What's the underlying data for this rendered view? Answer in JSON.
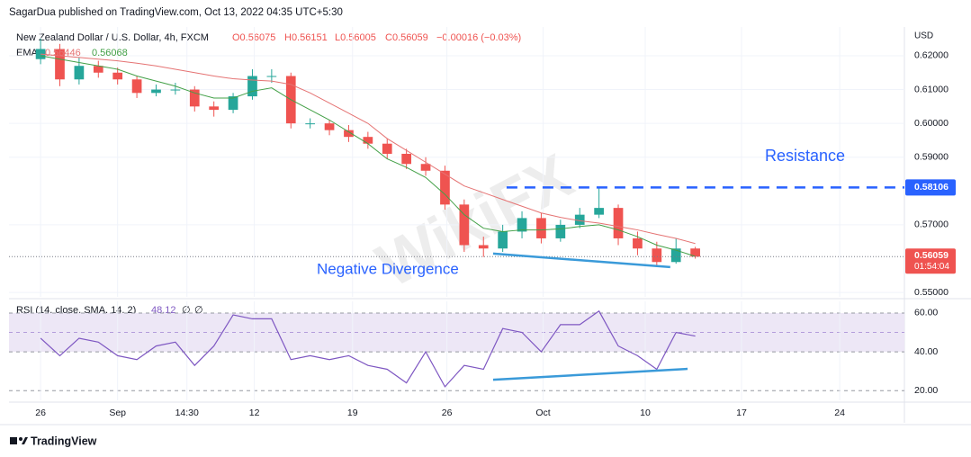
{
  "header": {
    "byline": "SagarDua published on TradingView.com, Oct 13, 2022 04:35 UTC+5:30",
    "footer": "TradingView",
    "watermark": "WikiFX"
  },
  "chart_data": [
    {
      "type": "candlestick",
      "name": "New Zealand Dollar / U.S. Dollar, 4h, FXCM",
      "ohlc_legend": [
        "O0.56075",
        "H0.56151",
        "L0.56005",
        "C0.56059",
        "−0.00016 (−0.03%)"
      ],
      "axis_label": "USD",
      "up_color": "#26a69a",
      "down_color": "#ef5350",
      "x": [
        0,
        1,
        2,
        3,
        4,
        5,
        6,
        7,
        8,
        9,
        10,
        11,
        12,
        13,
        14,
        15,
        16,
        17,
        18,
        19,
        20,
        21,
        22,
        23,
        24,
        25,
        26,
        27,
        28,
        29,
        30,
        31,
        32,
        33,
        34
      ],
      "open": [
        0.619,
        0.622,
        0.613,
        0.617,
        0.615,
        0.613,
        0.609,
        0.61,
        0.61,
        0.605,
        0.604,
        0.608,
        0.614,
        0.614,
        0.6,
        0.6,
        0.598,
        0.596,
        0.594,
        0.591,
        0.588,
        0.586,
        0.576,
        0.564,
        0.563,
        0.568,
        0.572,
        0.566,
        0.57,
        0.573,
        0.575,
        0.566,
        0.563,
        0.559,
        0.563
      ],
      "high": [
        0.625,
        0.6235,
        0.6195,
        0.6185,
        0.6165,
        0.614,
        0.6115,
        0.612,
        0.611,
        0.6065,
        0.609,
        0.616,
        0.616,
        0.615,
        0.6015,
        0.601,
        0.5995,
        0.5975,
        0.5955,
        0.5925,
        0.59,
        0.5875,
        0.5775,
        0.5665,
        0.57,
        0.574,
        0.5735,
        0.5715,
        0.575,
        0.581,
        0.576,
        0.568,
        0.565,
        0.566,
        0.5635
      ],
      "low": [
        0.6175,
        0.611,
        0.6115,
        0.6135,
        0.6115,
        0.6075,
        0.608,
        0.6085,
        0.6035,
        0.602,
        0.603,
        0.607,
        0.612,
        0.5985,
        0.5985,
        0.5965,
        0.5945,
        0.5925,
        0.5895,
        0.5865,
        0.5845,
        0.5745,
        0.562,
        0.5605,
        0.562,
        0.566,
        0.5645,
        0.565,
        0.569,
        0.572,
        0.564,
        0.561,
        0.5575,
        0.5585,
        0.56
      ],
      "close": [
        0.622,
        0.613,
        0.617,
        0.615,
        0.613,
        0.609,
        0.61,
        0.61,
        0.605,
        0.604,
        0.608,
        0.614,
        0.614,
        0.6,
        0.6,
        0.598,
        0.596,
        0.594,
        0.591,
        0.588,
        0.586,
        0.576,
        0.564,
        0.563,
        0.568,
        0.572,
        0.566,
        0.57,
        0.573,
        0.575,
        0.566,
        0.563,
        0.559,
        0.563,
        0.56059
      ],
      "indicator_label": "EMA",
      "overlays": [
        {
          "color": "#e57373",
          "last_label": "0.56446",
          "values": [
            0.6205,
            0.62,
            0.6195,
            0.619,
            0.6185,
            0.6178,
            0.617,
            0.616,
            0.615,
            0.614,
            0.6132,
            0.6128,
            0.6125,
            0.6115,
            0.609,
            0.606,
            0.603,
            0.6,
            0.5955,
            0.592,
            0.5885,
            0.585,
            0.5815,
            0.5795,
            0.5775,
            0.5755,
            0.5735,
            0.5722,
            0.5712,
            0.5705,
            0.5695,
            0.5685,
            0.5672,
            0.566,
            0.56446
          ]
        },
        {
          "color": "#43a047",
          "last_label": "0.56068",
          "values": [
            0.62,
            0.619,
            0.618,
            0.617,
            0.616,
            0.614,
            0.6125,
            0.611,
            0.609,
            0.6075,
            0.6075,
            0.6095,
            0.6105,
            0.607,
            0.604,
            0.601,
            0.5975,
            0.594,
            0.5895,
            0.587,
            0.584,
            0.579,
            0.573,
            0.569,
            0.568,
            0.5685,
            0.5685,
            0.5688,
            0.5695,
            0.57,
            0.5685,
            0.5665,
            0.564,
            0.5625,
            0.56068
          ]
        }
      ],
      "price_line": {
        "value": 0.56059,
        "label": "0.56059",
        "countdown": "01:54:04",
        "color": "#ef5350"
      },
      "resistance": {
        "text": "Resistance",
        "value": 0.58106,
        "label": "0.58106",
        "x_start": 24.2,
        "color": "#2962ff"
      },
      "divergence": {
        "text": "Negative Divergence",
        "x": [
          23.5,
          32.7
        ],
        "y": [
          0.5615,
          0.5575
        ],
        "color": "#3a9ad9"
      },
      "xlim": [
        -1.64,
        44.86
      ],
      "ylim": [
        0.5487,
        0.6285
      ],
      "yticks": [
        {
          "value": 0.62,
          "label": "0.62000"
        },
        {
          "value": 0.61,
          "label": "0.61000"
        },
        {
          "value": 0.6,
          "label": "0.60000"
        },
        {
          "value": 0.59,
          "label": "0.59000"
        },
        {
          "value": 0.57,
          "label": "0.57000"
        },
        {
          "value": 0.55,
          "label": "0.55000"
        }
      ],
      "grid": true
    },
    {
      "type": "line",
      "title": "RSI (14, close, SMA, 14, 2)",
      "value_label": "48.12",
      "extra_labels": [
        "∅",
        "∅"
      ],
      "color": "#7e57c2",
      "band_color": "#ede7f6",
      "x": [
        0,
        1,
        2,
        3,
        4,
        5,
        6,
        7,
        8,
        9,
        10,
        11,
        12,
        13,
        14,
        15,
        16,
        17,
        18,
        19,
        20,
        21,
        22,
        23,
        24,
        25,
        26,
        27,
        28,
        29,
        30,
        31,
        32,
        33,
        34
      ],
      "values": [
        47,
        38,
        47,
        45,
        38,
        36,
        43,
        45,
        33,
        43,
        59,
        57,
        57,
        36,
        38,
        36,
        38,
        33,
        31,
        24,
        40,
        22,
        33,
        31,
        52,
        50,
        40,
        54,
        54,
        61,
        43,
        38,
        31,
        50,
        48.12
      ],
      "divergence": {
        "x": [
          23.5,
          33.6
        ],
        "y": [
          25.6,
          31.2
        ],
        "color": "#3a9ad9"
      },
      "xlim": [
        -1.64,
        44.86
      ],
      "ylim": [
        15,
        66
      ],
      "yticks": [
        {
          "value": 60,
          "label": "60.00"
        },
        {
          "value": 40,
          "label": "40.00"
        },
        {
          "value": 20,
          "label": "20.00"
        }
      ],
      "xticks": [
        {
          "value": 0,
          "label": "26"
        },
        {
          "value": 4,
          "label": "Sep"
        },
        {
          "value": 7.6,
          "label": "14:30"
        },
        {
          "value": 11.1,
          "label": "12"
        },
        {
          "value": 16.2,
          "label": "19"
        },
        {
          "value": 21.1,
          "label": "26"
        },
        {
          "value": 26.1,
          "label": "Oct"
        },
        {
          "value": 31.4,
          "label": "10"
        },
        {
          "value": 36.4,
          "label": "17"
        },
        {
          "value": 41.5,
          "label": "24"
        }
      ],
      "grid": true
    }
  ]
}
